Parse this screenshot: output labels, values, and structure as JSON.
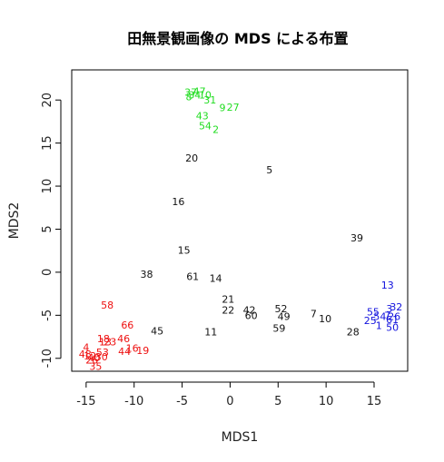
{
  "chart_data": {
    "type": "scatter",
    "title": "田無景観画像の MDS による布置",
    "xlabel": "MDS1",
    "ylabel": "MDS2",
    "xlim": [
      -16.5,
      18.5
    ],
    "ylim": [
      -11.5,
      23.5
    ],
    "xticks": [
      -15,
      -10,
      -5,
      0,
      5,
      10,
      15
    ],
    "yticks": [
      -10,
      -5,
      0,
      5,
      10,
      15,
      20
    ],
    "xtick_labels": [
      "-15",
      "-10",
      "-5",
      "0",
      "5",
      "10",
      "15"
    ],
    "ytick_labels": [
      "-10",
      "-5",
      "0",
      "5",
      "10",
      "15",
      "20"
    ],
    "grid": false,
    "colors": {
      "green": "#22dd22",
      "black": "#111111",
      "red": "#ee1111",
      "blue": "#1111dd"
    },
    "points": [
      {
        "label": "37",
        "x": -4.1,
        "y": 20.9,
        "color": "green"
      },
      {
        "label": "47",
        "x": -3.2,
        "y": 21.0,
        "color": "green"
      },
      {
        "label": "8",
        "x": -4.3,
        "y": 20.4,
        "color": "green"
      },
      {
        "label": "34",
        "x": -3.7,
        "y": 20.6,
        "color": "green"
      },
      {
        "label": "10",
        "x": -2.6,
        "y": 20.6,
        "color": "green"
      },
      {
        "label": "31",
        "x": -2.1,
        "y": 20.0,
        "color": "green"
      },
      {
        "label": "9",
        "x": -0.8,
        "y": 19.1,
        "color": "green"
      },
      {
        "label": "27",
        "x": 0.3,
        "y": 19.2,
        "color": "green"
      },
      {
        "label": "43",
        "x": -2.9,
        "y": 18.2,
        "color": "green"
      },
      {
        "label": "54",
        "x": -2.6,
        "y": 17.0,
        "color": "green"
      },
      {
        "label": "2",
        "x": -1.5,
        "y": 16.6,
        "color": "green"
      },
      {
        "label": "20",
        "x": -4.0,
        "y": 13.3,
        "color": "black"
      },
      {
        "label": "5",
        "x": 4.1,
        "y": 11.9,
        "color": "black"
      },
      {
        "label": "16",
        "x": -5.4,
        "y": 8.2,
        "color": "black"
      },
      {
        "label": "39",
        "x": 13.2,
        "y": 4.0,
        "color": "black"
      },
      {
        "label": "15",
        "x": -4.8,
        "y": 2.6,
        "color": "black"
      },
      {
        "label": "38",
        "x": -8.7,
        "y": -0.2,
        "color": "black"
      },
      {
        "label": "61",
        "x": -3.9,
        "y": -0.5,
        "color": "black"
      },
      {
        "label": "14",
        "x": -1.5,
        "y": -0.7,
        "color": "black"
      },
      {
        "label": "21",
        "x": -0.2,
        "y": -3.1,
        "color": "black"
      },
      {
        "label": "22",
        "x": -0.2,
        "y": -4.4,
        "color": "black"
      },
      {
        "label": "42",
        "x": 2.0,
        "y": -4.4,
        "color": "black"
      },
      {
        "label": "52",
        "x": 5.3,
        "y": -4.2,
        "color": "black"
      },
      {
        "label": "60",
        "x": 2.2,
        "y": -5.0,
        "color": "black"
      },
      {
        "label": "49",
        "x": 5.6,
        "y": -5.1,
        "color": "black"
      },
      {
        "label": "7",
        "x": 8.7,
        "y": -4.8,
        "color": "black"
      },
      {
        "label": "10",
        "x": 9.9,
        "y": -5.4,
        "color": "black"
      },
      {
        "label": "45",
        "x": -7.6,
        "y": -6.8,
        "color": "black"
      },
      {
        "label": "11",
        "x": -2.0,
        "y": -6.9,
        "color": "black"
      },
      {
        "label": "59",
        "x": 5.1,
        "y": -6.5,
        "color": "black"
      },
      {
        "label": "28",
        "x": 12.8,
        "y": -6.9,
        "color": "black"
      },
      {
        "label": "58",
        "x": -12.8,
        "y": -3.8,
        "color": "red"
      },
      {
        "label": "66",
        "x": -10.7,
        "y": -6.1,
        "color": "red"
      },
      {
        "label": "46",
        "x": -11.1,
        "y": -7.7,
        "color": "red"
      },
      {
        "label": "18",
        "x": -13.2,
        "y": -7.7,
        "color": "red"
      },
      {
        "label": "13",
        "x": -13.0,
        "y": -8.1,
        "color": "red"
      },
      {
        "label": "23",
        "x": -12.5,
        "y": -8.1,
        "color": "red"
      },
      {
        "label": "4",
        "x": -15.0,
        "y": -8.7,
        "color": "red"
      },
      {
        "label": "16",
        "x": -10.2,
        "y": -8.8,
        "color": "red"
      },
      {
        "label": "19",
        "x": -9.1,
        "y": -9.1,
        "color": "red"
      },
      {
        "label": "44",
        "x": -11.0,
        "y": -9.2,
        "color": "red"
      },
      {
        "label": "53",
        "x": -13.3,
        "y": -9.3,
        "color": "red"
      },
      {
        "label": "48",
        "x": -15.1,
        "y": -9.5,
        "color": "red"
      },
      {
        "label": "12",
        "x": -14.6,
        "y": -9.7,
        "color": "red"
      },
      {
        "label": "40",
        "x": -14.2,
        "y": -9.9,
        "color": "red"
      },
      {
        "label": "30",
        "x": -13.4,
        "y": -9.8,
        "color": "red"
      },
      {
        "label": "26",
        "x": -14.4,
        "y": -10.2,
        "color": "red"
      },
      {
        "label": "35",
        "x": -14.0,
        "y": -10.9,
        "color": "red"
      },
      {
        "label": "13",
        "x": 16.4,
        "y": -1.5,
        "color": "blue"
      },
      {
        "label": "32",
        "x": 17.3,
        "y": -4.0,
        "color": "blue"
      },
      {
        "label": "3",
        "x": 16.6,
        "y": -4.2,
        "color": "blue"
      },
      {
        "label": "55",
        "x": 14.9,
        "y": -4.6,
        "color": "blue"
      },
      {
        "label": "54",
        "x": 15.6,
        "y": -5.1,
        "color": "blue"
      },
      {
        "label": "7",
        "x": 16.4,
        "y": -5.0,
        "color": "blue"
      },
      {
        "label": "26",
        "x": 17.1,
        "y": -5.1,
        "color": "blue"
      },
      {
        "label": "25",
        "x": 14.6,
        "y": -5.6,
        "color": "blue"
      },
      {
        "label": "1",
        "x": 15.5,
        "y": -6.2,
        "color": "blue"
      },
      {
        "label": "61",
        "x": 16.9,
        "y": -5.5,
        "color": "blue"
      },
      {
        "label": "50",
        "x": 16.9,
        "y": -6.4,
        "color": "blue"
      }
    ]
  }
}
